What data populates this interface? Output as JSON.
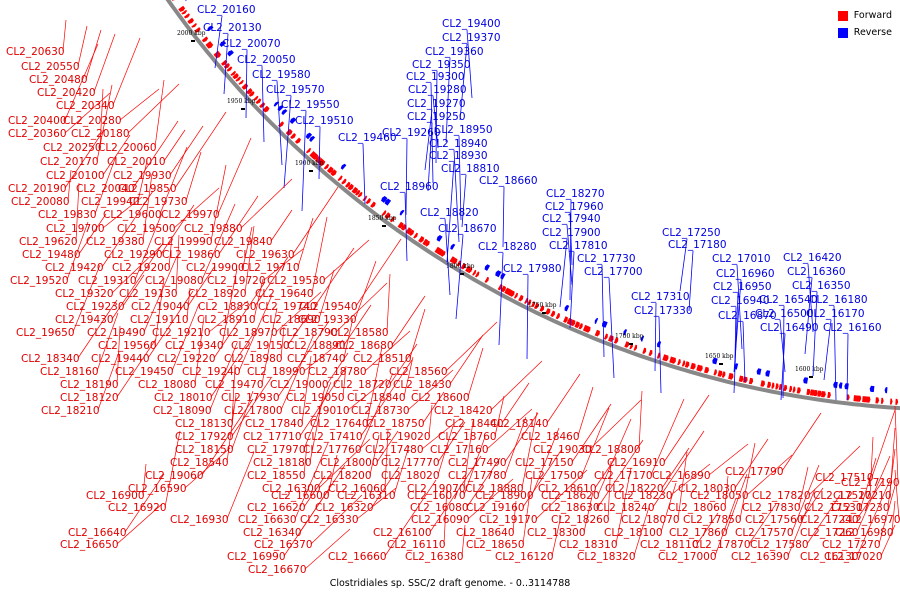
{
  "legend": {
    "forward": {
      "label": "Forward",
      "color": "#ff0000"
    },
    "reverse": {
      "label": "Reverse",
      "color": "#0000ff"
    }
  },
  "caption": "Clostridiales sp. SSC/2 draft genome. - 0..3114788",
  "backbone_color": "#888888",
  "ticks": [
    "2000 kbp",
    "1950 kbp",
    "1900 kbp",
    "1850 kbp",
    "1800 kbp",
    "1750 kbp",
    "1700 kbp",
    "1650 kbp",
    "1600 kbp"
  ],
  "reverse_labels": [
    "CL2_20160",
    "CL2_20130",
    "CL2_20070",
    "CL2_20050",
    "CL2_19580",
    "CL2_19570",
    "CL2_19550",
    "CL2_19510",
    "CL2_19460",
    "CL2_19400",
    "CL2_19370",
    "CL2_19360",
    "CL2_19350",
    "CL2_19300",
    "CL2_19280",
    "CL2_19270",
    "CL2_19250",
    "CL2_19260",
    "CL2_18950",
    "CL2_18940",
    "CL2_18930",
    "CL2_18810",
    "CL2_18660",
    "CL2_18960",
    "CL2_18820",
    "CL2_18670",
    "CL2_18280",
    "CL2_18270",
    "CL2_17960",
    "CL2_17940",
    "CL2_17900",
    "CL2_17810",
    "CL2_17980",
    "CL2_17730",
    "CL2_17700",
    "CL2_17250",
    "CL2_17180",
    "CL2_17310",
    "CL2_17330",
    "CL2_17010",
    "CL2_16960",
    "CL2_16950",
    "CL2_16940",
    "CL2_16870",
    "CL2_16420",
    "CL2_16360",
    "CL2_16350",
    "CL2_16540",
    "CL2_16180",
    "CL2_16500",
    "CL2_16170",
    "CL2_16490",
    "CL2_16160"
  ],
  "forward_labels": [
    "CL2_20630",
    "CL2_20550",
    "CL2_20480",
    "CL2_20420",
    "CL2_20340",
    "CL2_20400",
    "CL2_20280",
    "CL2_20360",
    "CL2_20180",
    "CL2_20250",
    "CL2_20060",
    "CL2_20170",
    "CL2_20010",
    "CL2_20100",
    "CL2_19930",
    "CL2_20190",
    "CL2_20040",
    "CL2_19850",
    "CL2_20080",
    "CL2_19940",
    "CL2_19730",
    "CL2_19830",
    "CL2_19600",
    "CL2_19970",
    "CL2_19700",
    "CL2_19500",
    "CL2_19880",
    "CL2_19620",
    "CL2_19380",
    "CL2_19990",
    "CL2_19840",
    "CL2_19480",
    "CL2_19290",
    "CL2_19860",
    "CL2_19630",
    "CL2_19420",
    "CL2_19200",
    "CL2_19900",
    "CL2_19710",
    "CL2_19520",
    "CL2_19310",
    "CL2_19080",
    "CL2_19720",
    "CL2_19530",
    "CL2_19320",
    "CL2_19130",
    "CL2_18920",
    "CL2_19640",
    "CL2_19230",
    "CL2_19040",
    "CL2_18830",
    "CL2_19740",
    "CL2_19540",
    "CL2_19430",
    "CL2_19110",
    "CL2_18910",
    "CL2_18690",
    "CL2_19330",
    "CL2_19650",
    "CL2_19490",
    "CL2_19210",
    "CL2_18970",
    "CL2_18790",
    "CL2_18580",
    "CL2_19560",
    "CL2_19340",
    "CL2_19150",
    "CL2_18890",
    "CL2_18680",
    "CL2_18340",
    "CL2_19440",
    "CL2_19220",
    "CL2_18980",
    "CL2_18740",
    "CL2_18510",
    "CL2_18160",
    "CL2_19450",
    "CL2_19240",
    "CL2_18990",
    "CL2_18780",
    "CL2_18560",
    "CL2_18190",
    "CL2_18080",
    "CL2_19470",
    "CL2_19000",
    "CL2_18720",
    "CL2_18430",
    "CL2_18120",
    "CL2_18010",
    "CL2_17930",
    "CL2_19050",
    "CL2_18840",
    "CL2_18600",
    "CL2_18210",
    "CL2_18090",
    "CL2_17800",
    "CL2_19010",
    "CL2_18730",
    "CL2_18420",
    "CL2_18130",
    "CL2_17840",
    "CL2_17640",
    "CL2_18750",
    "CL2_18440",
    "CL2_18140",
    "CL2_17920",
    "CL2_17710",
    "CL2_17410",
    "CL2_19020",
    "CL2_18760",
    "CL2_18460",
    "CL2_18150",
    "CL2_17970",
    "CL2_17760",
    "CL2_17480",
    "CL2_17160",
    "CL2_19030",
    "CL2_18800",
    "CL2_18540",
    "CL2_18180",
    "CL2_18000",
    "CL2_17770",
    "CL2_17490",
    "CL2_17150",
    "CL2_16910",
    "CL2_19060",
    "CL2_18550",
    "CL2_18200",
    "CL2_18020",
    "CL2_17780",
    "CL2_17500",
    "CL2_17170",
    "CL2_16890",
    "CL2_16590",
    "CL2_16300",
    "CL2_16060",
    "CL2_19070",
    "CL2_18880",
    "CL2_18610",
    "CL2_18220",
    "CL2_18030",
    "CL2_17790",
    "CL2_17510",
    "CL2_17190",
    "CL2_16900",
    "CL2_16600",
    "CL2_16310",
    "CL2_16070",
    "CL2_18900",
    "CL2_18620",
    "CL2_18230",
    "CL2_18050",
    "CL2_17820",
    "CL2_17520",
    "CL2_17210",
    "CL2_16920",
    "CL2_16620",
    "CL2_16320",
    "CL2_16080",
    "CL2_19160",
    "CL2_18630",
    "CL2_18240",
    "CL2_18060",
    "CL2_17830",
    "CL2_17530",
    "CL2_17230",
    "CL2_16930",
    "CL2_16630",
    "CL2_16330",
    "CL2_16090",
    "CL2_19170",
    "CL2_18260",
    "CL2_18070",
    "CL2_17850",
    "CL2_17560",
    "CL2_17240",
    "CL2_16970",
    "CL2_16640",
    "CL2_16340",
    "CL2_16100",
    "CL2_18640",
    "CL2_18300",
    "CL2_18100",
    "CL2_17860",
    "CL2_17570",
    "CL2_17260",
    "CL2_16980",
    "CL2_16650",
    "CL2_16370",
    "CL2_16110",
    "CL2_18650",
    "CL2_18310",
    "CL2_18110",
    "CL2_17870",
    "CL2_17580",
    "CL2_17270",
    "CL2_16990",
    "CL2_16660",
    "CL2_16380",
    "CL2_16120",
    "CL2_18320",
    "CL2_17000",
    "CL2_16390",
    "CL2_16130",
    "CL2_17020",
    "CL2_16670"
  ]
}
